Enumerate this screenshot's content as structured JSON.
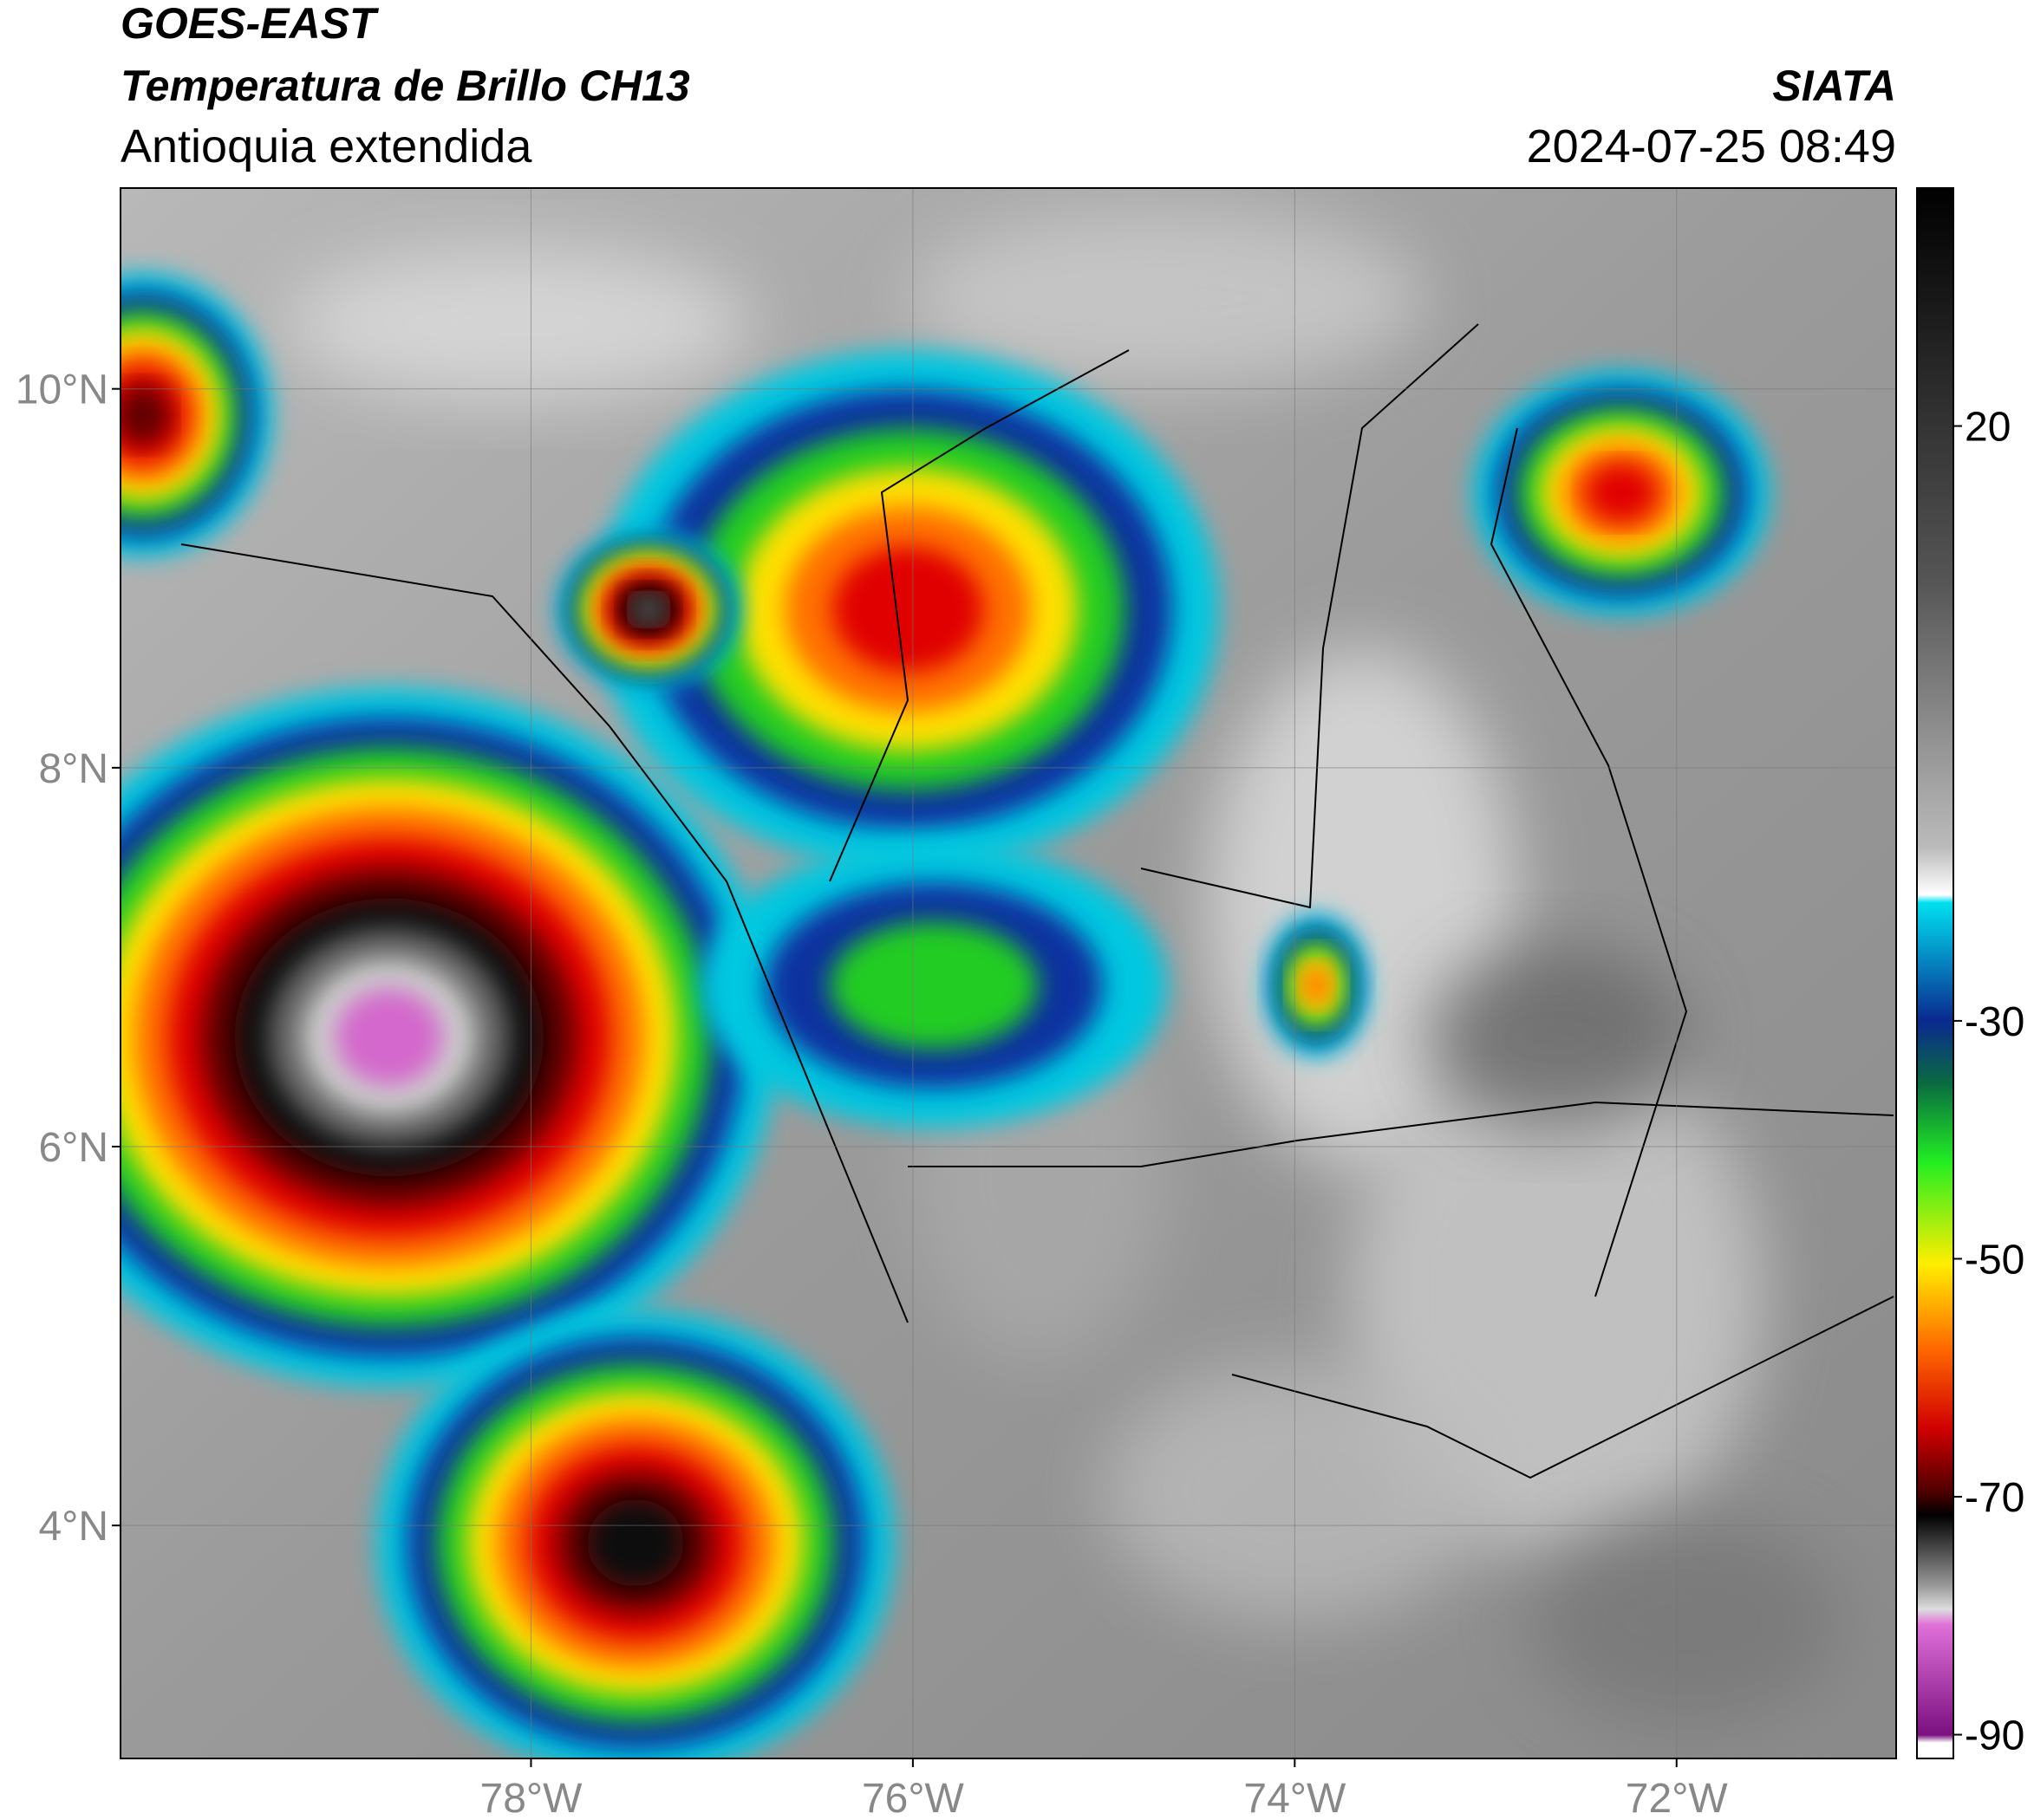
{
  "header": {
    "source": "GOES-EAST",
    "product": "Temperatura de Brillo CH13",
    "region": "Antioquia extendida",
    "agency": "SIATA",
    "datetime": "2024-07-25 08:49"
  },
  "map": {
    "xlim": [
      -80.15,
      -70.85
    ],
    "ylim": [
      2.77,
      11.06
    ],
    "xticks": [
      {
        "value": -78,
        "label": "78°W"
      },
      {
        "value": -76,
        "label": "76°W"
      },
      {
        "value": -74,
        "label": "74°W"
      },
      {
        "value": -72,
        "label": "72°W"
      }
    ],
    "yticks": [
      {
        "value": 10,
        "label": "10°N"
      },
      {
        "value": 8,
        "label": "8°N"
      },
      {
        "value": 6,
        "label": "6°N"
      },
      {
        "value": 4,
        "label": "4°N"
      }
    ],
    "grid": true
  },
  "colorbar": {
    "clim": [
      -92,
      40
    ],
    "ticks": [
      20,
      -30,
      -50,
      -70,
      -90
    ]
  }
}
